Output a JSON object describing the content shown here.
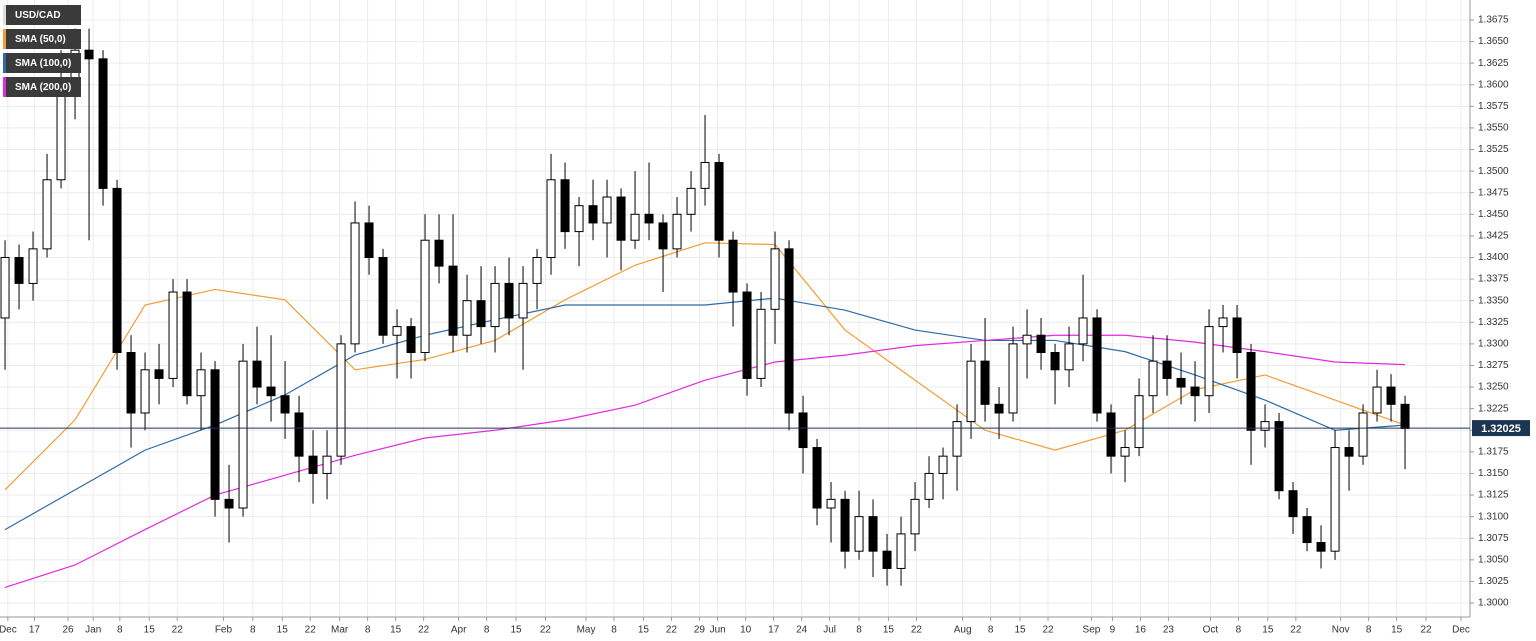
{
  "chart_data": {
    "type": "candlestick",
    "ohlc": {
      "name": "USD/CAD",
      "open": [
        1.333,
        1.34,
        1.337,
        1.341,
        1.349,
        1.36,
        1.364,
        1.363,
        1.348,
        1.329,
        1.322,
        1.327,
        1.326,
        1.336,
        1.324,
        1.327,
        1.312,
        1.311,
        1.328,
        1.325,
        1.324,
        1.322,
        1.317,
        1.315,
        1.317,
        1.33,
        1.344,
        1.34,
        1.331,
        1.332,
        1.329,
        1.342,
        1.339,
        1.331,
        1.335,
        1.332,
        1.337,
        1.333,
        1.337,
        1.34,
        1.349,
        1.343,
        1.346,
        1.344,
        1.347,
        1.342,
        1.345,
        1.344,
        1.341,
        1.345,
        1.348,
        1.351,
        1.342,
        1.336,
        1.326,
        1.334,
        1.341,
        1.322,
        1.318,
        1.311,
        1.312,
        1.306,
        1.31,
        1.306,
        1.304,
        1.308,
        1.312,
        1.315,
        1.317,
        1.321,
        1.328,
        1.323,
        1.322,
        1.33,
        1.331,
        1.329,
        1.327,
        1.33,
        1.333,
        1.322,
        1.317,
        1.318,
        1.324,
        1.328,
        1.326,
        1.325,
        1.324,
        1.332,
        1.333,
        1.329,
        1.32,
        1.321,
        1.313,
        1.31,
        1.307,
        1.306,
        1.318,
        1.317,
        1.322,
        1.325,
        1.323
      ],
      "high": [
        1.342,
        1.3415,
        1.343,
        1.352,
        1.364,
        1.3665,
        1.3665,
        1.364,
        1.349,
        1.331,
        1.329,
        1.33,
        1.3375,
        1.3375,
        1.329,
        1.328,
        1.316,
        1.33,
        1.332,
        1.331,
        1.328,
        1.324,
        1.32,
        1.32,
        1.331,
        1.3465,
        1.346,
        1.341,
        1.334,
        1.333,
        1.345,
        1.345,
        1.345,
        1.338,
        1.339,
        1.339,
        1.34,
        1.339,
        1.341,
        1.352,
        1.351,
        1.347,
        1.349,
        1.349,
        1.348,
        1.35,
        1.351,
        1.345,
        1.347,
        1.35,
        1.3565,
        1.352,
        1.343,
        1.337,
        1.336,
        1.343,
        1.342,
        1.324,
        1.319,
        1.314,
        1.313,
        1.313,
        1.312,
        1.308,
        1.31,
        1.314,
        1.317,
        1.318,
        1.323,
        1.33,
        1.333,
        1.325,
        1.332,
        1.334,
        1.333,
        1.33,
        1.332,
        1.338,
        1.334,
        1.323,
        1.32,
        1.326,
        1.331,
        1.331,
        1.329,
        1.328,
        1.334,
        1.3345,
        1.3345,
        1.33,
        1.323,
        1.322,
        1.314,
        1.311,
        1.309,
        1.32,
        1.32,
        1.323,
        1.327,
        1.3265,
        1.324
      ],
      "low": [
        1.327,
        1.334,
        1.335,
        1.34,
        1.348,
        1.356,
        1.342,
        1.346,
        1.327,
        1.318,
        1.32,
        1.323,
        1.325,
        1.323,
        1.32,
        1.31,
        1.307,
        1.31,
        1.323,
        1.321,
        1.319,
        1.314,
        1.3115,
        1.312,
        1.316,
        1.329,
        1.338,
        1.33,
        1.326,
        1.326,
        1.328,
        1.337,
        1.329,
        1.329,
        1.33,
        1.329,
        1.331,
        1.327,
        1.334,
        1.338,
        1.341,
        1.339,
        1.342,
        1.34,
        1.3385,
        1.341,
        1.342,
        1.336,
        1.34,
        1.343,
        1.346,
        1.34,
        1.332,
        1.324,
        1.325,
        1.33,
        1.32,
        1.315,
        1.309,
        1.307,
        1.304,
        1.305,
        1.303,
        1.302,
        1.302,
        1.306,
        1.311,
        1.312,
        1.313,
        1.319,
        1.321,
        1.319,
        1.321,
        1.326,
        1.327,
        1.323,
        1.325,
        1.328,
        1.321,
        1.315,
        1.314,
        1.317,
        1.322,
        1.324,
        1.323,
        1.321,
        1.322,
        1.329,
        1.326,
        1.316,
        1.318,
        1.312,
        1.308,
        1.306,
        1.304,
        1.305,
        1.313,
        1.316,
        1.321,
        1.321,
        1.3155
      ],
      "close": [
        1.34,
        1.337,
        1.341,
        1.349,
        1.36,
        1.364,
        1.363,
        1.348,
        1.329,
        1.322,
        1.327,
        1.326,
        1.336,
        1.324,
        1.327,
        1.312,
        1.311,
        1.328,
        1.325,
        1.324,
        1.322,
        1.317,
        1.315,
        1.317,
        1.33,
        1.344,
        1.34,
        1.331,
        1.332,
        1.329,
        1.342,
        1.339,
        1.331,
        1.335,
        1.332,
        1.337,
        1.333,
        1.337,
        1.34,
        1.349,
        1.343,
        1.346,
        1.344,
        1.347,
        1.342,
        1.345,
        1.344,
        1.341,
        1.345,
        1.348,
        1.351,
        1.342,
        1.336,
        1.326,
        1.334,
        1.341,
        1.322,
        1.318,
        1.311,
        1.312,
        1.306,
        1.31,
        1.306,
        1.304,
        1.308,
        1.312,
        1.315,
        1.317,
        1.321,
        1.328,
        1.323,
        1.322,
        1.33,
        1.331,
        1.329,
        1.327,
        1.33,
        1.333,
        1.322,
        1.317,
        1.318,
        1.324,
        1.328,
        1.326,
        1.325,
        1.324,
        1.332,
        1.333,
        1.329,
        1.32,
        1.321,
        1.313,
        1.31,
        1.307,
        1.306,
        1.318,
        1.317,
        1.322,
        1.325,
        1.323,
        1.3202
      ]
    },
    "sma": [
      {
        "name": "SMA (50,0)",
        "color": "#f39c34",
        "x": [
          0,
          5,
          10,
          15,
          20,
          25,
          30,
          35,
          40,
          45,
          50,
          55,
          60,
          65,
          70,
          75,
          80,
          85,
          90,
          95,
          100
        ],
        "values": [
          1.3131,
          1.3212,
          1.3345,
          1.3363,
          1.3351,
          1.327,
          1.3282,
          1.3304,
          1.3351,
          1.3391,
          1.3417,
          1.3415,
          1.3316,
          1.3258,
          1.32,
          1.3177,
          1.32,
          1.3247,
          1.3264,
          1.3235,
          1.3206
        ]
      },
      {
        "name": "SMA (100,0)",
        "color": "#2f6aa8",
        "x": [
          0,
          5,
          10,
          15,
          20,
          25,
          30,
          35,
          40,
          45,
          50,
          55,
          60,
          65,
          70,
          75,
          80,
          85,
          90,
          95,
          100
        ],
        "values": [
          1.3085,
          1.3131,
          1.3177,
          1.3206,
          1.3241,
          1.3287,
          1.331,
          1.3328,
          1.3345,
          1.3345,
          1.3345,
          1.3353,
          1.3339,
          1.3316,
          1.3304,
          1.3304,
          1.3291,
          1.3264,
          1.3235,
          1.32,
          1.3206
        ]
      },
      {
        "name": "SMA (200,0)",
        "color": "#e02be0",
        "x": [
          0,
          5,
          10,
          15,
          20,
          25,
          30,
          35,
          40,
          45,
          50,
          55,
          60,
          65,
          70,
          75,
          80,
          85,
          90,
          95,
          100
        ],
        "values": [
          1.3018,
          1.3044,
          1.3085,
          1.3125,
          1.3148,
          1.3171,
          1.3191,
          1.32,
          1.3212,
          1.3229,
          1.3258,
          1.3279,
          1.3287,
          1.3298,
          1.3304,
          1.331,
          1.331,
          1.3302,
          1.3291,
          1.3279,
          1.3276
        ]
      }
    ],
    "last_price": 1.32025,
    "xlim": [
      -0.36,
      104.64
    ],
    "xticks": [
      {
        "value": 0.2,
        "label": "Dec"
      },
      {
        "value": 2.1,
        "label": "17"
      },
      {
        "value": 4.5,
        "label": "26"
      },
      {
        "value": 6.3,
        "label": "Jan"
      },
      {
        "value": 8.2,
        "label": "8"
      },
      {
        "value": 10.3,
        "label": "15"
      },
      {
        "value": 12.3,
        "label": "22"
      },
      {
        "value": 15.6,
        "label": "Feb"
      },
      {
        "value": 17.7,
        "label": "8"
      },
      {
        "value": 19.8,
        "label": "15"
      },
      {
        "value": 21.8,
        "label": "22"
      },
      {
        "value": 23.9,
        "label": "Mar"
      },
      {
        "value": 25.9,
        "label": "8"
      },
      {
        "value": 27.9,
        "label": "15"
      },
      {
        "value": 29.9,
        "label": "22"
      },
      {
        "value": 32.4,
        "label": "Apr"
      },
      {
        "value": 34.4,
        "label": "8"
      },
      {
        "value": 36.5,
        "label": "15"
      },
      {
        "value": 38.6,
        "label": "22"
      },
      {
        "value": 41.5,
        "label": "May"
      },
      {
        "value": 43.5,
        "label": "8"
      },
      {
        "value": 45.6,
        "label": "15"
      },
      {
        "value": 47.6,
        "label": "22"
      },
      {
        "value": 49.6,
        "label": "29"
      },
      {
        "value": 50.9,
        "label": "Jun"
      },
      {
        "value": 52.9,
        "label": "10"
      },
      {
        "value": 54.9,
        "label": "17"
      },
      {
        "value": 56.9,
        "label": "24"
      },
      {
        "value": 58.9,
        "label": "Jul"
      },
      {
        "value": 61.0,
        "label": "8"
      },
      {
        "value": 63.1,
        "label": "15"
      },
      {
        "value": 65.1,
        "label": "22"
      },
      {
        "value": 68.4,
        "label": "Aug"
      },
      {
        "value": 70.4,
        "label": "8"
      },
      {
        "value": 72.5,
        "label": "15"
      },
      {
        "value": 74.5,
        "label": "22"
      },
      {
        "value": 77.6,
        "label": "Sep"
      },
      {
        "value": 79.1,
        "label": "9"
      },
      {
        "value": 81.1,
        "label": "16"
      },
      {
        "value": 83.1,
        "label": "23"
      },
      {
        "value": 86.1,
        "label": "Oct"
      },
      {
        "value": 88.1,
        "label": "8"
      },
      {
        "value": 90.2,
        "label": "15"
      },
      {
        "value": 92.2,
        "label": "22"
      },
      {
        "value": 95.4,
        "label": "Nov"
      },
      {
        "value": 97.4,
        "label": "8"
      },
      {
        "value": 99.4,
        "label": "15"
      },
      {
        "value": 101.5,
        "label": "22"
      },
      {
        "value": 104.0,
        "label": "Dec"
      }
    ],
    "ylim": [
      1.29838,
      1.36981
    ],
    "yticks": [
      {
        "value": 1.3,
        "label": "1.3000"
      },
      {
        "value": 1.3025,
        "label": "1.3025"
      },
      {
        "value": 1.305,
        "label": "1.3050"
      },
      {
        "value": 1.3075,
        "label": "1.3075"
      },
      {
        "value": 1.31,
        "label": "1.3100"
      },
      {
        "value": 1.3125,
        "label": "1.3125"
      },
      {
        "value": 1.315,
        "label": "1.3150"
      },
      {
        "value": 1.3175,
        "label": "1.3175"
      },
      {
        "value": 1.32,
        "label": "1.3200"
      },
      {
        "value": 1.3225,
        "label": "1.3225"
      },
      {
        "value": 1.325,
        "label": "1.3250"
      },
      {
        "value": 1.3275,
        "label": "1.3275"
      },
      {
        "value": 1.33,
        "label": "1.3300"
      },
      {
        "value": 1.3325,
        "label": "1.3325"
      },
      {
        "value": 1.335,
        "label": "1.3350"
      },
      {
        "value": 1.3375,
        "label": "1.3375"
      },
      {
        "value": 1.34,
        "label": "1.3400"
      },
      {
        "value": 1.3425,
        "label": "1.3425"
      },
      {
        "value": 1.345,
        "label": "1.3450"
      },
      {
        "value": 1.3475,
        "label": "1.3475"
      },
      {
        "value": 1.35,
        "label": "1.3500"
      },
      {
        "value": 1.3525,
        "label": "1.3525"
      },
      {
        "value": 1.355,
        "label": "1.3550"
      },
      {
        "value": 1.3575,
        "label": "1.3575"
      },
      {
        "value": 1.36,
        "label": "1.3600"
      },
      {
        "value": 1.3625,
        "label": "1.3625"
      },
      {
        "value": 1.365,
        "label": "1.3650"
      },
      {
        "value": 1.3675,
        "label": "1.3675"
      }
    ],
    "grid": true,
    "up_color": "#ffffff",
    "down_color": "#000000",
    "last_price_color": "#1c3553"
  }
}
